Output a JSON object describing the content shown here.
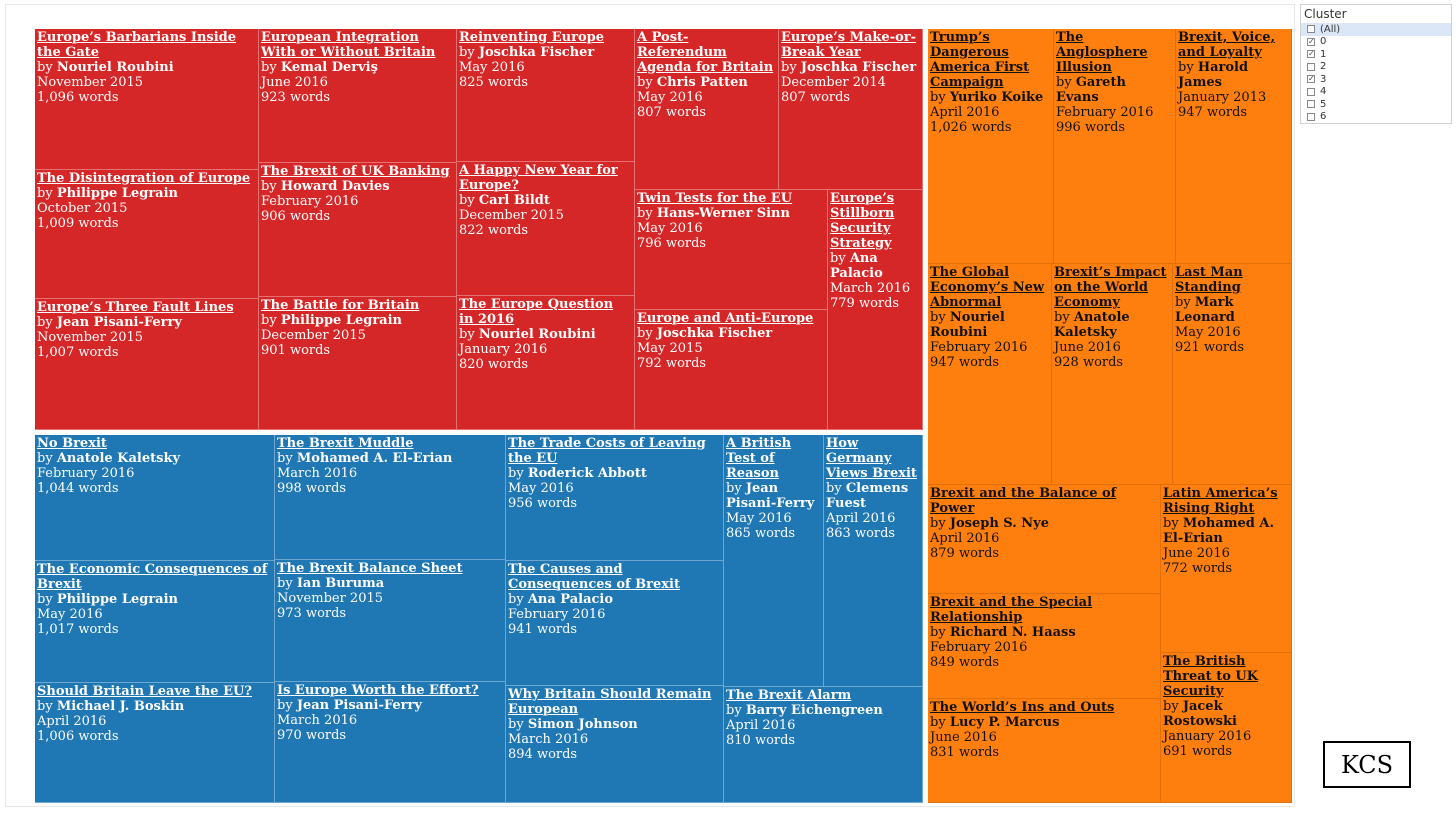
{
  "filter": {
    "title": "Cluster",
    "options": [
      {
        "label": "(All)",
        "checked": false,
        "highlighted": true
      },
      {
        "label": "0",
        "checked": true
      },
      {
        "label": "1",
        "checked": true
      },
      {
        "label": "2",
        "checked": false
      },
      {
        "label": "3",
        "checked": true
      },
      {
        "label": "4",
        "checked": false
      },
      {
        "label": "5",
        "checked": false
      },
      {
        "label": "6",
        "checked": false
      }
    ]
  },
  "logo": {
    "text": "KCS"
  },
  "colors": {
    "cluster_red": "#d62728",
    "cluster_blue": "#1f77b4",
    "cluster_orange": "#ff7f0e"
  },
  "treemap": {
    "red": [
      {
        "title": "Europe’s Barbarians Inside the Gate",
        "by": "by ",
        "author": "Nouriel Roubini",
        "date": "November 2015",
        "words": "1,096 words"
      },
      {
        "title": "European Integration With or Without Britain",
        "by": "by ",
        "author": "Kemal Derviş",
        "date": "June 2016",
        "words": "923 words"
      },
      {
        "title": "Reinventing Europe",
        "by": "by ",
        "author": "Joschka Fischer",
        "date": "May 2016",
        "words": "825 words"
      },
      {
        "title": "A Post-Referendum Agenda for Britain",
        "by": "by ",
        "author": "Chris Patten",
        "date": "May 2016",
        "words": "807 words"
      },
      {
        "title": "Europe’s Make-or-Break Year",
        "by": "by ",
        "author": "Joschka Fischer",
        "date": "December 2014",
        "words": "807 words"
      },
      {
        "title": "The Disintegration of Europe",
        "by": "by ",
        "author": "Philippe Legrain",
        "date": "October 2015",
        "words": "1,009 words"
      },
      {
        "title": "The Brexit of UK Banking",
        "by": "by ",
        "author": "Howard Davies",
        "date": "February 2016",
        "words": "906 words"
      },
      {
        "title": "A Happy New Year for Europe?",
        "by": "by ",
        "author": "Carl Bildt",
        "date": "December 2015",
        "words": "822 words"
      },
      {
        "title": "Twin Tests for the EU",
        "by": "by ",
        "author": "Hans-Werner Sinn",
        "date": "May 2016",
        "words": "796 words"
      },
      {
        "title": "Europe’s Stillborn Security Strategy",
        "by": "by ",
        "author": "Ana Palacio",
        "date": "March 2016",
        "words": "779 words"
      },
      {
        "title": "Europe’s Three Fault Lines",
        "by": "by ",
        "author": "Jean Pisani-Ferry",
        "date": "November 2015",
        "words": "1,007 words"
      },
      {
        "title": "The Battle for Britain",
        "by": "by ",
        "author": "Philippe Legrain",
        "date": "December 2015",
        "words": "901 words"
      },
      {
        "title": "The Europe Question in 2016",
        "by": "by ",
        "author": "Nouriel Roubini",
        "date": "January 2016",
        "words": "820 words"
      },
      {
        "title": "Europe and Anti-Europe",
        "by": "by ",
        "author": "Joschka Fischer",
        "date": "May 2015",
        "words": "792 words"
      }
    ],
    "blue": [
      {
        "title": "No Brexit",
        "by": "by ",
        "author": "Anatole Kaletsky",
        "date": "February 2016",
        "words": "1,044 words"
      },
      {
        "title": "The Brexit Muddle",
        "by": "by ",
        "author": "Mohamed A. El-Erian",
        "date": "March 2016",
        "words": "998 words"
      },
      {
        "title": "The Trade Costs of Leaving the EU",
        "by": "by ",
        "author": "Roderick Abbott",
        "date": "May 2016",
        "words": "956 words"
      },
      {
        "title": "A British Test of Reason",
        "by": "by ",
        "author": "Jean Pisani-Ferry",
        "date": "May 2016",
        "words": "865 words"
      },
      {
        "title": "How Germany Views Brexit",
        "by": "by ",
        "author": "Clemens Fuest",
        "date": "April 2016",
        "words": "863 words"
      },
      {
        "title": "The Economic Consequences of Brexit",
        "by": "by ",
        "author": "Philippe Legrain",
        "date": "May 2016",
        "words": "1,017 words"
      },
      {
        "title": "The Brexit Balance Sheet",
        "by": "by ",
        "author": "Ian Buruma",
        "date": "November 2015",
        "words": "973 words"
      },
      {
        "title": "The Causes and Consequences of Brexit",
        "by": "by ",
        "author": "Ana Palacio",
        "date": "February 2016",
        "words": "941 words"
      },
      {
        "title": "Should Britain Leave the EU?",
        "by": "by ",
        "author": "Michael J. Boskin",
        "date": "April 2016",
        "words": "1,006 words"
      },
      {
        "title": "Is Europe Worth the Effort?",
        "by": "by ",
        "author": "Jean Pisani-Ferry",
        "date": "March 2016",
        "words": "970 words"
      },
      {
        "title": "Why Britain Should Remain European",
        "by": "by ",
        "author": "Simon Johnson",
        "date": "March 2016",
        "words": "894 words"
      },
      {
        "title": "The Brexit Alarm",
        "by": "by ",
        "author": "Barry Eichengreen",
        "date": "April 2016",
        "words": "810 words"
      }
    ],
    "orange": [
      {
        "title": "Trump’s Dangerous America First Campaign",
        "by": "by ",
        "author": "Yuriko Koike",
        "date": "April 2016",
        "words": "1,026 words"
      },
      {
        "title": "The Anglosphere Illusion",
        "by": "by ",
        "author": "Gareth Evans",
        "date": "February 2016",
        "words": "996 words"
      },
      {
        "title": "Brexit, Voice, and Loyalty",
        "by": "by ",
        "author": "Harold James",
        "date": "January 2013",
        "words": "947 words"
      },
      {
        "title": "The Global Economy’s New Abnormal",
        "by": "by ",
        "author": "Nouriel Roubini",
        "date": "February 2016",
        "words": "947 words"
      },
      {
        "title": "Brexit’s Impact on the World Economy",
        "by": "by ",
        "author": "Anatole Kaletsky",
        "date": "June 2016",
        "words": "928 words"
      },
      {
        "title": "Last Man Standing",
        "by": "by ",
        "author": "Mark Leonard",
        "date": "May 2016",
        "words": "921 words"
      },
      {
        "title": "Brexit and the Balance of Power",
        "by": "by ",
        "author": "Joseph S. Nye",
        "date": "April 2016",
        "words": "879 words"
      },
      {
        "title": "Latin America’s Rising Right",
        "by": "by ",
        "author": "Mohamed A. El-Erian",
        "date": "June 2016",
        "words": "772 words"
      },
      {
        "title": "Brexit and the Special Relationship",
        "by": "by ",
        "author": "Richard N. Haass",
        "date": "February 2016",
        "words": "849 words"
      },
      {
        "title": "The British Threat to UK Security",
        "by": "by ",
        "author": "Jacek Rostowski",
        "date": "January 2016",
        "words": "691 words"
      },
      {
        "title": "The World’s Ins and Outs",
        "by": "by ",
        "author": "Lucy P. Marcus",
        "date": "June 2016",
        "words": "831 words"
      }
    ]
  }
}
